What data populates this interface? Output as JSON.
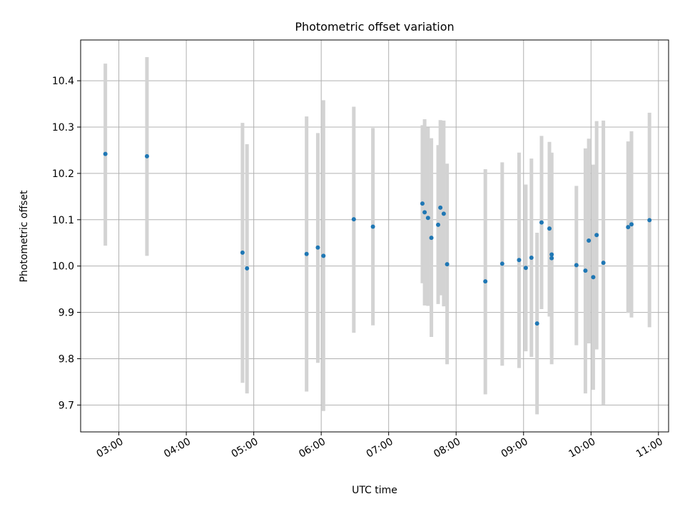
{
  "chart_data": {
    "type": "scatter",
    "title": "Photometric offset variation",
    "xlabel": "UTC time",
    "ylabel": "Photometric offset",
    "grid": true,
    "xlim": [
      "02:26",
      "11:09"
    ],
    "ylim": [
      9.642,
      10.488
    ],
    "x_ticks": [
      "03:00",
      "04:00",
      "05:00",
      "06:00",
      "07:00",
      "08:00",
      "09:00",
      "10:00",
      "11:00"
    ],
    "y_ticks": [
      "9.7",
      "9.8",
      "9.9",
      "10.0",
      "10.1",
      "10.2",
      "10.3",
      "10.4"
    ],
    "y_tick_values": [
      9.7,
      9.8,
      9.9,
      10.0,
      10.1,
      10.2,
      10.3,
      10.4
    ],
    "series": [
      {
        "color": "#1f77b4",
        "error_color": "#d3d3d3",
        "points": [
          {
            "x": "02:48",
            "y": 10.242,
            "ylow": 10.044,
            "yhigh": 10.437
          },
          {
            "x": "03:25",
            "y": 10.237,
            "ylow": 10.022,
            "yhigh": 10.451
          },
          {
            "x": "04:50",
            "y": 10.029,
            "ylow": 9.748,
            "yhigh": 10.309
          },
          {
            "x": "04:54",
            "y": 9.995,
            "ylow": 9.725,
            "yhigh": 10.263
          },
          {
            "x": "05:47",
            "y": 10.026,
            "ylow": 9.729,
            "yhigh": 10.323
          },
          {
            "x": "05:57",
            "y": 10.04,
            "ylow": 9.791,
            "yhigh": 10.287
          },
          {
            "x": "06:02",
            "y": 10.022,
            "ylow": 9.687,
            "yhigh": 10.358
          },
          {
            "x": "06:29",
            "y": 10.101,
            "ylow": 9.856,
            "yhigh": 10.344
          },
          {
            "x": "06:46",
            "y": 10.085,
            "ylow": 9.872,
            "yhigh": 10.298
          },
          {
            "x": "07:30",
            "y": 10.135,
            "ylow": 9.963,
            "yhigh": 10.304
          },
          {
            "x": "07:32",
            "y": 10.116,
            "ylow": 9.915,
            "yhigh": 10.317
          },
          {
            "x": "07:35",
            "y": 10.104,
            "ylow": 9.914,
            "yhigh": 10.299
          },
          {
            "x": "07:38",
            "y": 10.061,
            "ylow": 9.847,
            "yhigh": 10.276
          },
          {
            "x": "07:44",
            "y": 10.089,
            "ylow": 9.918,
            "yhigh": 10.261
          },
          {
            "x": "07:46",
            "y": 10.126,
            "ylow": 9.937,
            "yhigh": 10.315
          },
          {
            "x": "07:49",
            "y": 10.113,
            "ylow": 9.913,
            "yhigh": 10.314
          },
          {
            "x": "07:52",
            "y": 10.004,
            "ylow": 9.788,
            "yhigh": 10.221
          },
          {
            "x": "08:26",
            "y": 9.967,
            "ylow": 9.723,
            "yhigh": 10.209
          },
          {
            "x": "08:41",
            "y": 10.005,
            "ylow": 9.785,
            "yhigh": 10.224
          },
          {
            "x": "08:56",
            "y": 10.013,
            "ylow": 9.78,
            "yhigh": 10.245
          },
          {
            "x": "09:02",
            "y": 9.996,
            "ylow": 9.816,
            "yhigh": 10.176
          },
          {
            "x": "09:07",
            "y": 10.018,
            "ylow": 9.804,
            "yhigh": 10.232
          },
          {
            "x": "09:12",
            "y": 9.876,
            "ylow": 9.68,
            "yhigh": 10.072
          },
          {
            "x": "09:16",
            "y": 10.094,
            "ylow": 9.907,
            "yhigh": 10.281
          },
          {
            "x": "09:23",
            "y": 10.081,
            "ylow": 9.891,
            "yhigh": 10.268
          },
          {
            "x": "09:25",
            "y": 10.025,
            "ylow": 9.807,
            "yhigh": 10.244
          },
          {
            "x": "09:25",
            "y": 10.017,
            "ylow": 9.788,
            "yhigh": 10.245
          },
          {
            "x": "09:47",
            "y": 10.002,
            "ylow": 9.829,
            "yhigh": 10.173
          },
          {
            "x": "09:55",
            "y": 9.99,
            "ylow": 9.725,
            "yhigh": 10.254
          },
          {
            "x": "09:58",
            "y": 10.055,
            "ylow": 9.833,
            "yhigh": 10.275
          },
          {
            "x": "10:02",
            "y": 9.976,
            "ylow": 9.733,
            "yhigh": 10.219
          },
          {
            "x": "10:05",
            "y": 10.067,
            "ylow": 9.82,
            "yhigh": 10.313
          },
          {
            "x": "10:11",
            "y": 10.007,
            "ylow": 9.701,
            "yhigh": 10.314
          },
          {
            "x": "10:33",
            "y": 10.084,
            "ylow": 9.899,
            "yhigh": 10.269
          },
          {
            "x": "10:36",
            "y": 10.09,
            "ylow": 9.889,
            "yhigh": 10.291
          },
          {
            "x": "10:52",
            "y": 10.099,
            "ylow": 9.868,
            "yhigh": 10.331
          }
        ]
      }
    ]
  }
}
